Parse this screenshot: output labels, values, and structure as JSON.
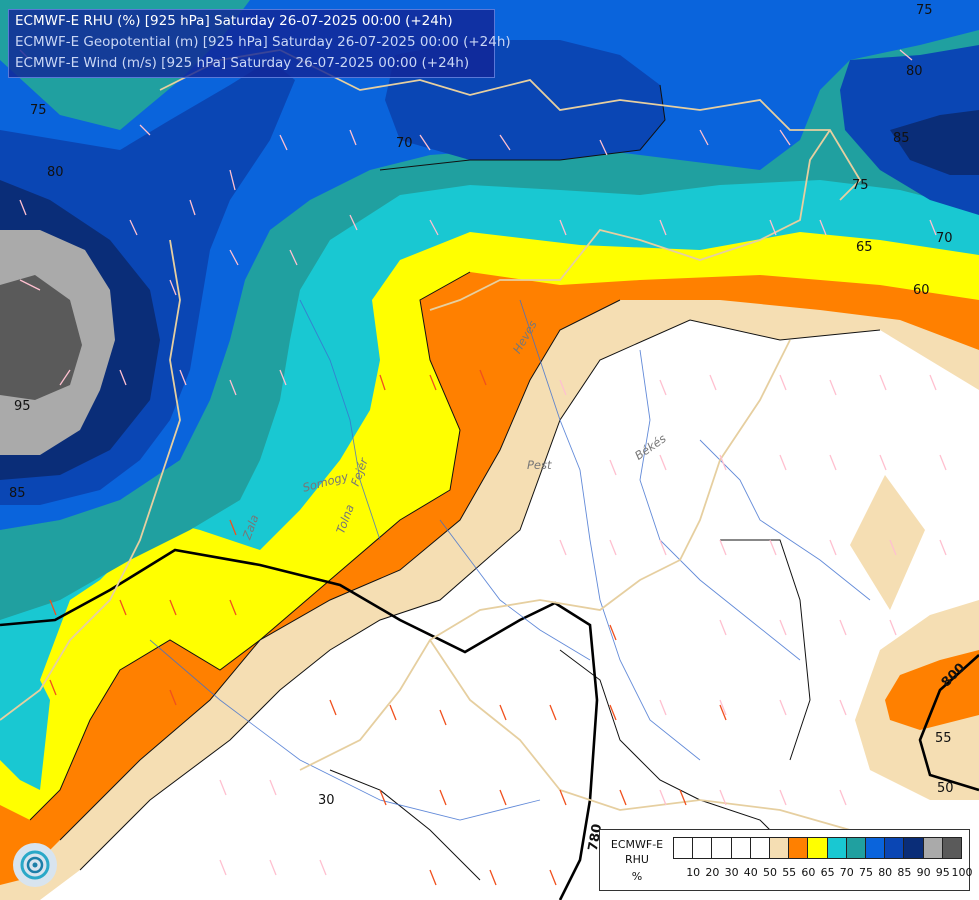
{
  "header": {
    "line1": "ECMWF-E RHU (%) [925 hPa] Saturday 26-07-2025 00:00 (+24h)",
    "line2": "ECMWF-E Geopotential (m) [925 hPa] Saturday 26-07-2025 00:00 (+24h)",
    "line3": "ECMWF-E Wind (m/s) [925 hPa] Saturday 26-07-2025 00:00 (+24h)"
  },
  "legend": {
    "model": "ECMWF-E",
    "variable": "RHU",
    "unit": "%",
    "ticks": [
      "10",
      "20",
      "30",
      "40",
      "50",
      "55",
      "60",
      "65",
      "70",
      "75",
      "80",
      "85",
      "90",
      "95",
      "100"
    ],
    "colors": [
      "#ffffff",
      "#ffffff",
      "#ffffff",
      "#ffffff",
      "#ffffff",
      "#f5deb3",
      "#ff8000",
      "#ffff00",
      "#19c8d2",
      "#20a0a0",
      "#0a64dc",
      "#0a46b4",
      "#0a2d78",
      "#aaaaaa",
      "#5a5a5a"
    ]
  },
  "contour_labels": {
    "c75_top": "75",
    "c80_tr": "80",
    "c85_tr": "85",
    "c75_mid": "75",
    "c70_r": "70",
    "c65_r": "65",
    "c60_r": "60",
    "c75_left": "75",
    "c80_left": "80",
    "c95_left": "95",
    "c85_left": "85",
    "c70_top": "70",
    "c50_right": "50",
    "c55_right": "55",
    "c30_bottom": "30",
    "geo_780": "780",
    "geo_800": "800"
  },
  "places": {
    "heves": "Heves",
    "bekes": "Békés",
    "pest": "Pest",
    "somogy": "Somogy",
    "fejer": "Fejér",
    "tolna": "Tolna",
    "zala": "Zala"
  }
}
